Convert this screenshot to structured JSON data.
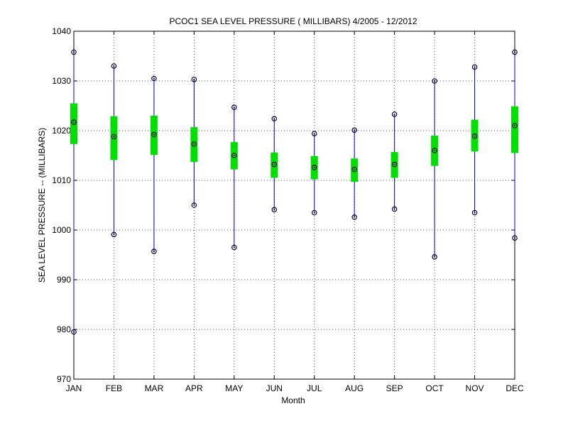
{
  "chart_data": {
    "type": "box",
    "title": "PCOC1  SEA LEVEL PRESSURE ( MILLIBARS) 4/2005 - 12/2012",
    "xlabel": "Month",
    "ylabel": "SEA LEVEL PRESSURE -- (MILLIBARS)",
    "ylim": [
      970,
      1040
    ],
    "yticks": [
      "970",
      "980",
      "990",
      "1000",
      "1010",
      "1020",
      "1030",
      "1040"
    ],
    "grid": true,
    "categories": [
      "JAN",
      "FEB",
      "MAR",
      "APR",
      "MAY",
      "JUN",
      "JUL",
      "AUG",
      "SEP",
      "OCT",
      "NOV",
      "DEC"
    ],
    "series": [
      {
        "min": [
          979.5,
          999.1,
          995.7,
          1005.0,
          996.5,
          1004.1,
          1003.5,
          1002.6,
          1004.2,
          994.6,
          1003.5,
          998.4
        ],
        "q1": [
          1017.3,
          1014.1,
          1015.1,
          1013.7,
          1012.2,
          1010.5,
          1010.2,
          1009.7,
          1010.5,
          1012.9,
          1015.8,
          1015.5
        ],
        "median": [
          1021.7,
          1018.8,
          1019.2,
          1017.3,
          1015.0,
          1013.2,
          1012.6,
          1012.2,
          1013.2,
          1016.0,
          1018.9,
          1021.0
        ],
        "q3": [
          1025.5,
          1022.9,
          1023.0,
          1020.7,
          1017.7,
          1015.6,
          1014.9,
          1014.4,
          1015.7,
          1019.0,
          1022.2,
          1024.9
        ],
        "max": [
          1035.8,
          1033.0,
          1030.5,
          1030.3,
          1024.7,
          1022.4,
          1019.4,
          1020.1,
          1023.3,
          1030.0,
          1032.8,
          1035.8
        ]
      }
    ],
    "colors": {
      "whisker": "#0000cc",
      "box": "#00e000",
      "marker": "#000033",
      "grid": "#555555"
    }
  }
}
